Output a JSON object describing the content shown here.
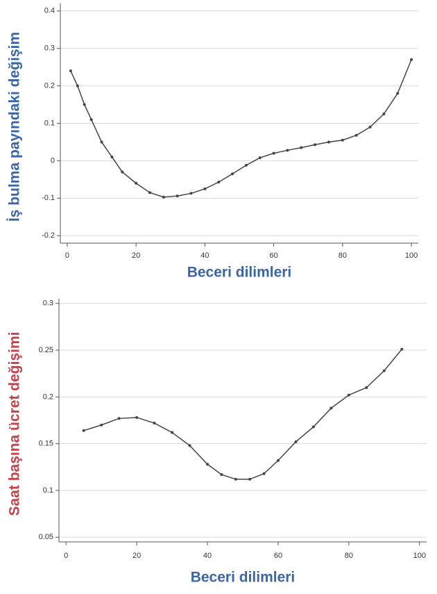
{
  "chart_data": [
    {
      "type": "line",
      "xlabel": "Beceri dilimleri",
      "ylabel": "İş bulma payındaki değişim",
      "ylabel_color": "#3a66a6",
      "xlabel_color": "#3a66a6",
      "grid": true,
      "xlim": [
        -2,
        102
      ],
      "xticks": [
        0,
        20,
        40,
        60,
        80,
        100
      ],
      "ylim": [
        -0.22,
        0.42
      ],
      "yticks": [
        -0.2,
        -0.1,
        0,
        0.1,
        0.2,
        0.3,
        0.4
      ],
      "series": [
        {
          "color": "#444444",
          "x": [
            1,
            3,
            5,
            7,
            10,
            13,
            16,
            20,
            24,
            28,
            32,
            36,
            40,
            44,
            48,
            52,
            56,
            60,
            64,
            68,
            72,
            76,
            80,
            84,
            88,
            92,
            96,
            100
          ],
          "values": [
            0.24,
            0.2,
            0.15,
            0.11,
            0.05,
            0.01,
            -0.03,
            -0.06,
            -0.085,
            -0.097,
            -0.094,
            -0.087,
            -0.075,
            -0.057,
            -0.035,
            -0.012,
            0.008,
            0.02,
            0.028,
            0.035,
            0.043,
            0.05,
            0.055,
            0.068,
            0.09,
            0.125,
            0.18,
            0.27
          ]
        }
      ]
    },
    {
      "type": "line",
      "xlabel": "Beceri dilimleri",
      "ylabel": "Saat başına ücret değişimi",
      "ylabel_color": "#c8404a",
      "xlabel_color": "#3a66a6",
      "grid": true,
      "xlim": [
        -2,
        102
      ],
      "xticks": [
        0,
        20,
        40,
        60,
        80,
        100
      ],
      "ylim": [
        0.045,
        0.305
      ],
      "yticks": [
        0.05,
        0.1,
        0.15,
        0.2,
        0.25,
        0.3
      ],
      "series": [
        {
          "color": "#444444",
          "x": [
            5,
            10,
            15,
            20,
            25,
            30,
            35,
            40,
            44,
            48,
            52,
            56,
            60,
            65,
            70,
            75,
            80,
            85,
            90,
            95
          ],
          "values": [
            0.164,
            0.17,
            0.177,
            0.178,
            0.172,
            0.162,
            0.148,
            0.128,
            0.117,
            0.112,
            0.112,
            0.118,
            0.132,
            0.152,
            0.168,
            0.188,
            0.202,
            0.21,
            0.228,
            0.251
          ]
        }
      ]
    }
  ]
}
